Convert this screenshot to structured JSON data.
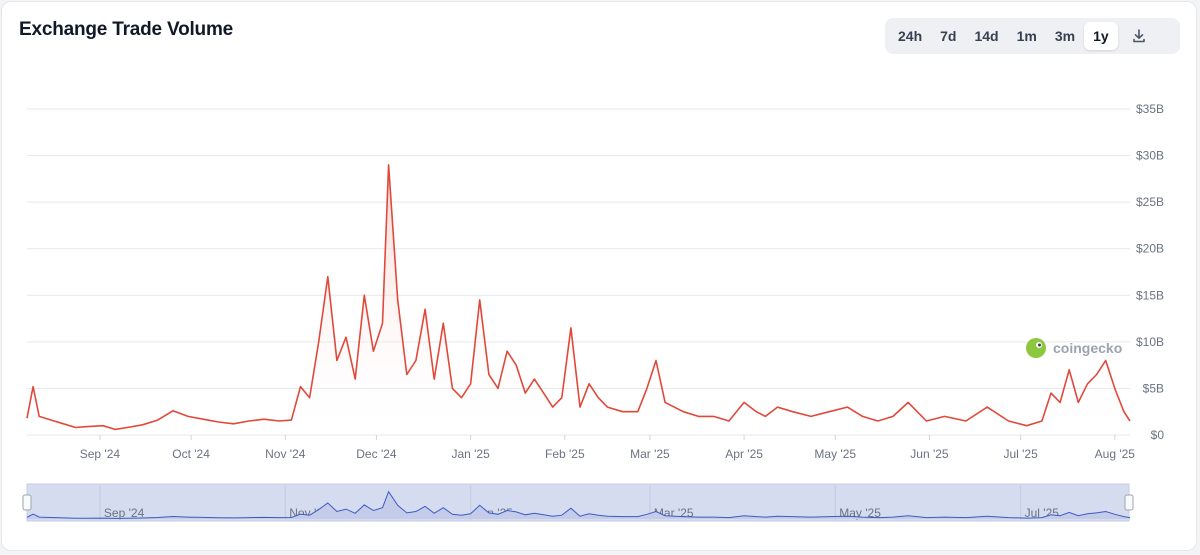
{
  "title": "Exchange Trade Volume",
  "ranges": [
    {
      "label": "24h",
      "active": false
    },
    {
      "label": "7d",
      "active": false
    },
    {
      "label": "14d",
      "active": false
    },
    {
      "label": "1m",
      "active": false
    },
    {
      "label": "3m",
      "active": false
    },
    {
      "label": "1y",
      "active": true
    }
  ],
  "download_icon": "download-icon",
  "watermark": "coingecko",
  "colors": {
    "line": "#e0493a",
    "area_top": "#f6c9c3",
    "grid": "#e5e7eb",
    "navigator_fill": "#d6dcef",
    "navigator_line": "#3b5bc4"
  },
  "chart_data": {
    "type": "area",
    "title": "Exchange Trade Volume",
    "xlabel": "",
    "ylabel": "",
    "y_unit": "USD",
    "ylim": [
      0,
      35
    ],
    "y_ticks": [
      "$0",
      "$5B",
      "$10B",
      "$15B",
      "$20B",
      "$25B",
      "$30B",
      "$35B"
    ],
    "x_ticks": [
      "Sep '24",
      "Oct '24",
      "Nov '24",
      "Dec '24",
      "Jan '25",
      "Feb '25",
      "Mar '25",
      "Apr '25",
      "May '25",
      "Jun '25",
      "Jul '25",
      "Aug '25"
    ],
    "navigator_ticks": [
      "Sep '24",
      "Nov '24",
      "Jan '25",
      "Mar '25",
      "May '25",
      "Jul '25"
    ],
    "grid": true,
    "legend": "none",
    "x": [
      "2024-08-08",
      "2024-08-10",
      "2024-08-12",
      "2024-08-16",
      "2024-08-20",
      "2024-08-24",
      "2024-08-28",
      "2024-09-02",
      "2024-09-06",
      "2024-09-10",
      "2024-09-15",
      "2024-09-20",
      "2024-09-25",
      "2024-09-30",
      "2024-10-05",
      "2024-10-10",
      "2024-10-15",
      "2024-10-20",
      "2024-10-25",
      "2024-10-30",
      "2024-11-03",
      "2024-11-06",
      "2024-11-09",
      "2024-11-12",
      "2024-11-15",
      "2024-11-18",
      "2024-11-21",
      "2024-11-24",
      "2024-11-27",
      "2024-11-30",
      "2024-12-03",
      "2024-12-05",
      "2024-12-08",
      "2024-12-11",
      "2024-12-14",
      "2024-12-17",
      "2024-12-20",
      "2024-12-23",
      "2024-12-26",
      "2024-12-29",
      "2025-01-01",
      "2025-01-04",
      "2025-01-07",
      "2025-01-10",
      "2025-01-13",
      "2025-01-16",
      "2025-01-19",
      "2025-01-22",
      "2025-01-25",
      "2025-01-28",
      "2025-01-31",
      "2025-02-03",
      "2025-02-06",
      "2025-02-09",
      "2025-02-12",
      "2025-02-15",
      "2025-02-20",
      "2025-02-25",
      "2025-02-28",
      "2025-03-03",
      "2025-03-06",
      "2025-03-09",
      "2025-03-12",
      "2025-03-17",
      "2025-03-22",
      "2025-03-27",
      "2025-04-01",
      "2025-04-05",
      "2025-04-08",
      "2025-04-12",
      "2025-04-17",
      "2025-04-23",
      "2025-04-29",
      "2025-05-05",
      "2025-05-10",
      "2025-05-15",
      "2025-05-20",
      "2025-05-25",
      "2025-05-31",
      "2025-06-06",
      "2025-06-13",
      "2025-06-20",
      "2025-06-27",
      "2025-07-03",
      "2025-07-08",
      "2025-07-11",
      "2025-07-14",
      "2025-07-17",
      "2025-07-20",
      "2025-07-23",
      "2025-07-26",
      "2025-07-29",
      "2025-08-01",
      "2025-08-04",
      "2025-08-06"
    ],
    "series": [
      {
        "values": [
          1.8,
          5.2,
          2.0,
          1.6,
          1.2,
          0.8,
          0.9,
          1.0,
          0.6,
          0.8,
          1.1,
          1.6,
          2.6,
          2.0,
          1.7,
          1.4,
          1.2,
          1.5,
          1.7,
          1.5,
          1.6,
          5.2,
          4.0,
          10.0,
          17.0,
          8.0,
          10.5,
          6.0,
          15.0,
          9.0,
          12.0,
          29.0,
          14.5,
          6.5,
          8.0,
          13.5,
          6.0,
          12.0,
          5.0,
          4.0,
          5.5,
          14.5,
          6.5,
          5.0,
          9.0,
          7.5,
          4.5,
          6.0,
          4.5,
          3.0,
          4.0,
          11.5,
          3.0,
          5.5,
          4.0,
          3.0,
          2.5,
          2.5,
          5.0,
          8.0,
          3.5,
          3.0,
          2.5,
          2.0,
          2.0,
          1.5,
          3.5,
          2.5,
          2.0,
          3.0,
          2.5,
          2.0,
          2.5,
          3.0,
          2.0,
          1.5,
          2.0,
          3.5,
          1.5,
          2.0,
          1.5,
          3.0,
          1.5,
          1.0,
          1.5,
          4.5,
          3.5,
          7.0,
          3.5,
          5.5,
          6.5,
          8.0,
          5.0,
          2.5,
          1.5
        ]
      }
    ]
  }
}
